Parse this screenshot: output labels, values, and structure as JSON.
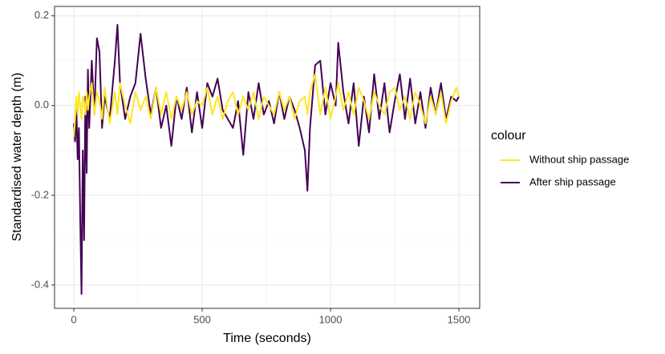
{
  "chart_data": {
    "type": "line",
    "x_label": "Time (seconds)",
    "y_label": "Standardised water depth (m)",
    "legend_title": "colour",
    "legend": "right",
    "grid": true,
    "xlim": [
      -75,
      1581
    ],
    "ylim": [
      -0.452,
      0.221
    ],
    "xticks": [
      0,
      500,
      1000,
      1500
    ],
    "yticks": [
      0.2,
      {
        "value": 0,
        "label": "0.0"
      },
      -0.2,
      -0.4
    ],
    "x_minor_grid": [
      250,
      750,
      1250
    ],
    "y_minor_grid": [
      0.1,
      -0.1,
      -0.3
    ],
    "x": [
      0,
      5,
      10,
      15,
      20,
      25,
      30,
      35,
      40,
      45,
      50,
      55,
      60,
      70,
      80,
      90,
      100,
      110,
      120,
      140,
      160,
      170,
      180,
      200,
      220,
      240,
      260,
      280,
      300,
      320,
      340,
      360,
      380,
      400,
      420,
      440,
      460,
      480,
      500,
      520,
      540,
      560,
      580,
      600,
      620,
      640,
      660,
      680,
      700,
      720,
      740,
      760,
      780,
      800,
      820,
      840,
      860,
      880,
      900,
      910,
      920,
      940,
      960,
      980,
      1000,
      1020,
      1030,
      1050,
      1070,
      1090,
      1110,
      1130,
      1150,
      1170,
      1190,
      1210,
      1230,
      1250,
      1270,
      1290,
      1310,
      1330,
      1350,
      1370,
      1390,
      1410,
      1430,
      1450,
      1470,
      1490,
      1500
    ],
    "series": [
      {
        "name": "Without ship passage",
        "color": "#fde725",
        "values": [
          -0.07,
          -0.03,
          0.02,
          -0.02,
          0.03,
          0.0,
          -0.03,
          0.02,
          0.01,
          -0.02,
          0.03,
          -0.01,
          0.02,
          0.05,
          -0.02,
          0.03,
          0.01,
          -0.03,
          0.04,
          -0.04,
          0.03,
          -0.02,
          0.05,
          0.0,
          -0.04,
          0.03,
          -0.01,
          0.02,
          -0.03,
          0.04,
          -0.02,
          0.03,
          -0.03,
          0.02,
          -0.01,
          0.03,
          -0.02,
          0.01,
          0.0,
          0.04,
          -0.02,
          0.02,
          -0.03,
          0.01,
          0.03,
          -0.02,
          0.02,
          -0.01,
          0.03,
          -0.03,
          0.02,
          0.0,
          -0.02,
          0.03,
          -0.01,
          0.02,
          -0.03,
          0.01,
          0.02,
          -0.02,
          0.03,
          0.07,
          -0.02,
          0.04,
          -0.03,
          0.02,
          0.05,
          -0.01,
          0.03,
          -0.02,
          0.04,
          0.01,
          -0.03,
          0.03,
          0.0,
          -0.02,
          0.03,
          0.04,
          -0.01,
          0.02,
          -0.03,
          0.03,
          0.0,
          -0.04,
          0.02,
          -0.02,
          0.03,
          -0.04,
          0.01,
          0.04,
          0.02
        ]
      },
      {
        "name": "After ship passage",
        "color": "#440154",
        "values": [
          -0.04,
          -0.08,
          0.0,
          -0.12,
          -0.05,
          -0.25,
          -0.42,
          -0.1,
          -0.3,
          0.02,
          -0.15,
          0.08,
          -0.05,
          0.1,
          -0.02,
          0.15,
          0.12,
          -0.05,
          0.02,
          -0.03,
          0.1,
          0.18,
          0.05,
          -0.03,
          0.02,
          0.05,
          0.16,
          0.06,
          -0.02,
          0.04,
          -0.05,
          0.0,
          -0.09,
          0.02,
          -0.03,
          0.04,
          -0.06,
          0.03,
          -0.05,
          0.05,
          0.02,
          0.06,
          -0.01,
          -0.03,
          -0.05,
          0.01,
          -0.11,
          0.03,
          -0.03,
          0.05,
          -0.02,
          0.01,
          -0.04,
          0.03,
          -0.03,
          0.02,
          -0.01,
          -0.05,
          -0.1,
          -0.19,
          -0.05,
          0.09,
          0.1,
          -0.02,
          0.05,
          0.0,
          0.14,
          0.03,
          -0.04,
          0.05,
          -0.09,
          0.02,
          -0.06,
          0.07,
          -0.03,
          0.05,
          -0.06,
          0.01,
          0.07,
          -0.03,
          0.06,
          -0.04,
          0.03,
          -0.05,
          0.04,
          -0.02,
          0.05,
          -0.03,
          0.02,
          0.01,
          0.02
        ]
      }
    ]
  }
}
